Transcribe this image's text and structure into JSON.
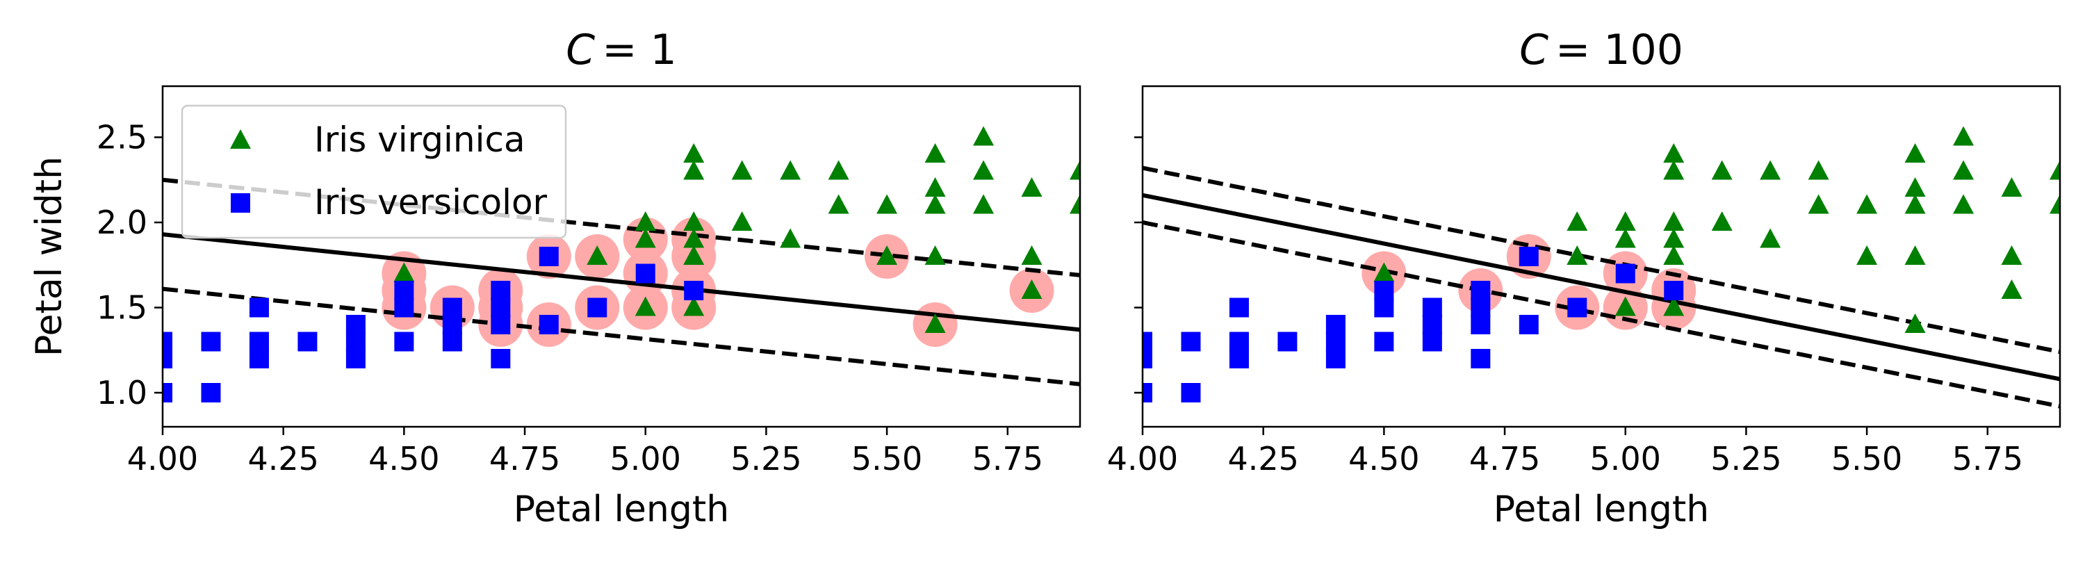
{
  "chart_data": [
    {
      "type": "scatter",
      "title_var": "C",
      "title_value": "= 1",
      "xlabel": "Petal length",
      "ylabel": "Petal width",
      "xlim": [
        4.0,
        5.9
      ],
      "ylim": [
        0.8,
        2.8
      ],
      "xticks": [
        "4.00",
        "4.25",
        "4.50",
        "4.75",
        "5.00",
        "5.25",
        "5.50",
        "5.75"
      ],
      "yticks": [
        "1.0",
        "1.5",
        "2.0",
        "2.5"
      ],
      "grid": false,
      "legend_position": "upper-left",
      "series": [
        {
          "name": "Iris virginica",
          "marker": "triangle",
          "color": "#008000",
          "points": [
            [
              4.5,
              1.7
            ],
            [
              4.9,
              1.8
            ],
            [
              5.0,
              2.0
            ],
            [
              5.0,
              1.5
            ],
            [
              5.0,
              1.9
            ],
            [
              5.1,
              2.4
            ],
            [
              5.1,
              2.3
            ],
            [
              5.1,
              2.0
            ],
            [
              5.1,
              1.9
            ],
            [
              5.1,
              1.8
            ],
            [
              5.1,
              1.5
            ],
            [
              5.2,
              2.3
            ],
            [
              5.2,
              2.0
            ],
            [
              5.3,
              2.3
            ],
            [
              5.3,
              1.9
            ],
            [
              5.4,
              2.3
            ],
            [
              5.4,
              2.1
            ],
            [
              5.5,
              2.1
            ],
            [
              5.5,
              1.8
            ],
            [
              5.6,
              2.4
            ],
            [
              5.6,
              2.2
            ],
            [
              5.6,
              2.1
            ],
            [
              5.6,
              1.8
            ],
            [
              5.6,
              1.4
            ],
            [
              5.7,
              2.5
            ],
            [
              5.7,
              2.3
            ],
            [
              5.7,
              2.1
            ],
            [
              5.8,
              2.2
            ],
            [
              5.8,
              1.8
            ],
            [
              5.8,
              1.6
            ],
            [
              5.9,
              2.3
            ],
            [
              5.9,
              2.1
            ]
          ]
        },
        {
          "name": "Iris versicolor",
          "marker": "square",
          "color": "#0000ff",
          "points": [
            [
              4.0,
              1.3
            ],
            [
              4.0,
              1.2
            ],
            [
              4.0,
              1.0
            ],
            [
              4.1,
              1.3
            ],
            [
              4.1,
              1.0
            ],
            [
              4.2,
              1.5
            ],
            [
              4.2,
              1.3
            ],
            [
              4.2,
              1.2
            ],
            [
              4.3,
              1.3
            ],
            [
              4.4,
              1.4
            ],
            [
              4.4,
              1.3
            ],
            [
              4.4,
              1.2
            ],
            [
              4.5,
              1.6
            ],
            [
              4.5,
              1.5
            ],
            [
              4.5,
              1.3
            ],
            [
              4.6,
              1.5
            ],
            [
              4.6,
              1.4
            ],
            [
              4.6,
              1.3
            ],
            [
              4.7,
              1.6
            ],
            [
              4.7,
              1.5
            ],
            [
              4.7,
              1.4
            ],
            [
              4.7,
              1.2
            ],
            [
              4.8,
              1.8
            ],
            [
              4.8,
              1.4
            ],
            [
              4.9,
              1.5
            ],
            [
              5.0,
              1.7
            ],
            [
              5.1,
              1.6
            ]
          ]
        }
      ],
      "support_vectors": [
        [
          4.5,
          1.7
        ],
        [
          4.5,
          1.6
        ],
        [
          4.5,
          1.5
        ],
        [
          4.6,
          1.5
        ],
        [
          4.7,
          1.6
        ],
        [
          4.7,
          1.5
        ],
        [
          4.7,
          1.4
        ],
        [
          4.8,
          1.8
        ],
        [
          4.8,
          1.4
        ],
        [
          4.9,
          1.8
        ],
        [
          4.9,
          1.5
        ],
        [
          5.0,
          1.9
        ],
        [
          5.0,
          1.7
        ],
        [
          5.0,
          1.5
        ],
        [
          5.1,
          1.9
        ],
        [
          5.1,
          1.8
        ],
        [
          5.1,
          1.6
        ],
        [
          5.1,
          1.5
        ],
        [
          5.5,
          1.8
        ],
        [
          5.6,
          1.4
        ],
        [
          5.8,
          1.6
        ]
      ],
      "support_vector_color": "#ffaaaa",
      "decision_boundary": {
        "x": [
          4.0,
          5.9
        ],
        "y": [
          1.93,
          1.37
        ]
      },
      "margin_upper": {
        "x": [
          4.0,
          5.9
        ],
        "y": [
          2.25,
          1.69
        ]
      },
      "margin_lower": {
        "x": [
          4.0,
          5.9
        ],
        "y": [
          1.61,
          1.05
        ]
      }
    },
    {
      "type": "scatter",
      "title_var": "C",
      "title_value": "= 100",
      "xlabel": "Petal length",
      "ylabel": "",
      "xlim": [
        4.0,
        5.9
      ],
      "ylim": [
        0.8,
        2.8
      ],
      "xticks": [
        "4.00",
        "4.25",
        "4.50",
        "4.75",
        "5.00",
        "5.25",
        "5.50",
        "5.75"
      ],
      "yticks": [],
      "grid": false,
      "series": [
        {
          "name": "Iris virginica",
          "marker": "triangle",
          "color": "#008000",
          "points": [
            [
              4.5,
              1.7
            ],
            [
              4.9,
              2.0
            ],
            [
              4.9,
              1.8
            ],
            [
              5.0,
              2.0
            ],
            [
              5.0,
              1.9
            ],
            [
              5.0,
              1.5
            ],
            [
              5.1,
              2.4
            ],
            [
              5.1,
              2.3
            ],
            [
              5.1,
              2.0
            ],
            [
              5.1,
              1.9
            ],
            [
              5.1,
              1.8
            ],
            [
              5.1,
              1.5
            ],
            [
              5.2,
              2.3
            ],
            [
              5.2,
              2.0
            ],
            [
              5.3,
              2.3
            ],
            [
              5.3,
              1.9
            ],
            [
              5.4,
              2.3
            ],
            [
              5.4,
              2.1
            ],
            [
              5.5,
              2.1
            ],
            [
              5.5,
              1.8
            ],
            [
              5.6,
              2.4
            ],
            [
              5.6,
              2.2
            ],
            [
              5.6,
              2.1
            ],
            [
              5.6,
              1.8
            ],
            [
              5.6,
              1.4
            ],
            [
              5.7,
              2.5
            ],
            [
              5.7,
              2.3
            ],
            [
              5.7,
              2.1
            ],
            [
              5.8,
              2.2
            ],
            [
              5.8,
              1.8
            ],
            [
              5.8,
              1.6
            ],
            [
              5.9,
              2.3
            ],
            [
              5.9,
              2.1
            ]
          ]
        },
        {
          "name": "Iris versicolor",
          "marker": "square",
          "color": "#0000ff",
          "points": [
            [
              4.0,
              1.3
            ],
            [
              4.0,
              1.2
            ],
            [
              4.0,
              1.0
            ],
            [
              4.1,
              1.3
            ],
            [
              4.1,
              1.0
            ],
            [
              4.2,
              1.5
            ],
            [
              4.2,
              1.3
            ],
            [
              4.2,
              1.2
            ],
            [
              4.3,
              1.3
            ],
            [
              4.4,
              1.4
            ],
            [
              4.4,
              1.3
            ],
            [
              4.4,
              1.2
            ],
            [
              4.5,
              1.6
            ],
            [
              4.5,
              1.5
            ],
            [
              4.5,
              1.3
            ],
            [
              4.6,
              1.5
            ],
            [
              4.6,
              1.4
            ],
            [
              4.6,
              1.3
            ],
            [
              4.7,
              1.6
            ],
            [
              4.7,
              1.5
            ],
            [
              4.7,
              1.4
            ],
            [
              4.7,
              1.2
            ],
            [
              4.8,
              1.8
            ],
            [
              4.8,
              1.4
            ],
            [
              4.9,
              1.5
            ],
            [
              5.0,
              1.7
            ],
            [
              5.1,
              1.6
            ]
          ]
        }
      ],
      "support_vectors": [
        [
          4.5,
          1.7
        ],
        [
          4.7,
          1.6
        ],
        [
          4.8,
          1.8
        ],
        [
          4.9,
          1.5
        ],
        [
          5.0,
          1.7
        ],
        [
          5.0,
          1.5
        ],
        [
          5.1,
          1.6
        ],
        [
          5.1,
          1.5
        ]
      ],
      "support_vector_color": "#ffaaaa",
      "decision_boundary": {
        "x": [
          4.0,
          5.9
        ],
        "y": [
          2.16,
          1.08
        ]
      },
      "margin_upper": {
        "x": [
          4.0,
          5.9
        ],
        "y": [
          2.32,
          1.24
        ]
      },
      "margin_lower": {
        "x": [
          4.0,
          5.9
        ],
        "y": [
          2.0,
          0.92
        ]
      }
    }
  ]
}
